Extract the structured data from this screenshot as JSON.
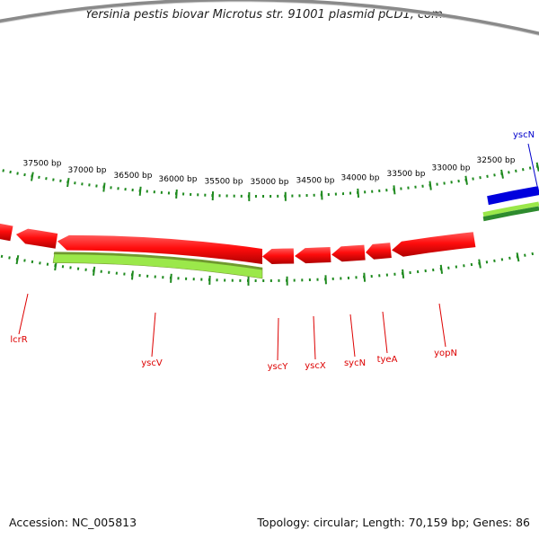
{
  "title": "Yersinia pestis biovar Microtus str. 91001 plasmid pCD1, com...",
  "footer": {
    "accession": "Accession: NC_005813",
    "summary": "Topology: circular; Length: 70,159 bp; Genes: 86"
  },
  "colors": {
    "backbone": "#8a8a8a",
    "forward_gene": "#ff1a1a",
    "reverse_gene": "#ff1a1a",
    "ruler_tick": "#1e8a1e",
    "ruler_label": "#000000",
    "green_bar": "#9be84a",
    "dark_green_bar": "#2e8b2e",
    "blue_bar": "#0000dd",
    "red_label": "#dd0000",
    "blue_label": "#0000cc"
  },
  "ruler_labels": [
    "37500 bp",
    "37000 bp",
    "36500 bp",
    "36000 bp",
    "35500 bp",
    "35000 bp",
    "34500 bp",
    "34000 bp",
    "33500 bp",
    "33000 bp",
    "32500 bp"
  ],
  "gene_labels": [
    {
      "text": "lcrR",
      "color": "#dd0000"
    },
    {
      "text": "yscV",
      "color": "#dd0000"
    },
    {
      "text": "yscY",
      "color": "#dd0000"
    },
    {
      "text": "yscX",
      "color": "#dd0000"
    },
    {
      "text": "sycN",
      "color": "#dd0000"
    },
    {
      "text": "tyeA",
      "color": "#dd0000"
    },
    {
      "text": "yopN",
      "color": "#dd0000"
    },
    {
      "text": "yscN",
      "color": "#0000cc"
    }
  ]
}
